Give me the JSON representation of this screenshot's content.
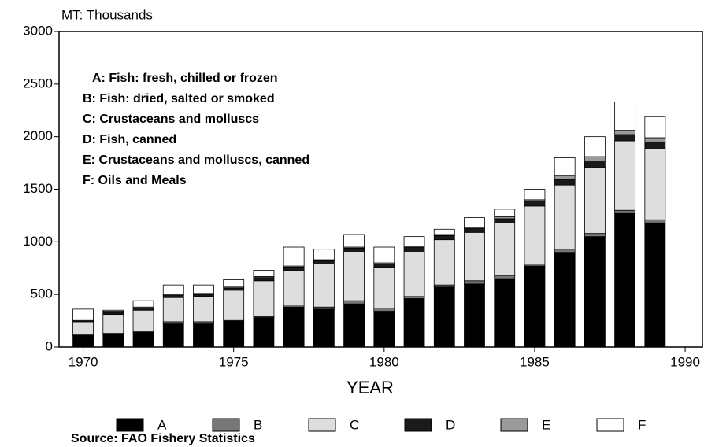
{
  "chart_data": {
    "type": "bar",
    "stacked": true,
    "y_label": "MT: Thousands",
    "x_label": "YEAR",
    "annotations": [
      "A: Fish: fresh, chilled or frozen",
      "B: Fish: dried, salted or smoked",
      "C: Crustaceans and molluscs",
      "D: Fish, canned",
      "E: Crustaceans and molluscs, canned",
      "F: Oils and Meals"
    ],
    "source": "Source: FAO Fishery Statistics",
    "x": [
      1970,
      1971,
      1972,
      1973,
      1974,
      1975,
      1976,
      1977,
      1978,
      1979,
      1980,
      1981,
      1982,
      1983,
      1984,
      1985,
      1986,
      1987,
      1988,
      1989
    ],
    "xlim": [
      1969.2,
      1990.6
    ],
    "xticks": [
      1970,
      1975,
      1980,
      1985,
      1990
    ],
    "ylim": [
      0,
      3000
    ],
    "yticks": [
      0,
      500,
      1000,
      1500,
      2000,
      2500,
      3000
    ],
    "series": [
      {
        "name": "A",
        "color": "#000000",
        "values": [
          110,
          120,
          140,
          220,
          220,
          250,
          280,
          380,
          360,
          410,
          340,
          460,
          570,
          600,
          650,
          770,
          900,
          1050,
          1270,
          1180
        ]
      },
      {
        "name": "B",
        "color": "#777777",
        "values": [
          10,
          10,
          10,
          20,
          20,
          10,
          10,
          20,
          20,
          30,
          30,
          20,
          20,
          30,
          30,
          20,
          30,
          30,
          30,
          30
        ]
      },
      {
        "name": "C",
        "color": "#dedede",
        "values": [
          120,
          180,
          200,
          230,
          240,
          280,
          340,
          330,
          410,
          470,
          390,
          430,
          430,
          460,
          500,
          550,
          610,
          630,
          660,
          680
        ]
      },
      {
        "name": "D",
        "color": "#1a1a1a",
        "values": [
          10,
          20,
          20,
          20,
          20,
          20,
          30,
          30,
          30,
          30,
          30,
          40,
          40,
          40,
          40,
          40,
          50,
          60,
          60,
          60
        ]
      },
      {
        "name": "E",
        "color": "#9a9a9a",
        "values": [
          10,
          10,
          10,
          10,
          10,
          10,
          10,
          10,
          10,
          10,
          10,
          10,
          10,
          10,
          20,
          20,
          40,
          40,
          40,
          40
        ]
      },
      {
        "name": "F",
        "color": "#ffffff",
        "values": [
          100,
          10,
          60,
          90,
          80,
          70,
          60,
          180,
          100,
          120,
          150,
          90,
          50,
          90,
          70,
          100,
          170,
          190,
          270,
          200
        ]
      }
    ]
  }
}
